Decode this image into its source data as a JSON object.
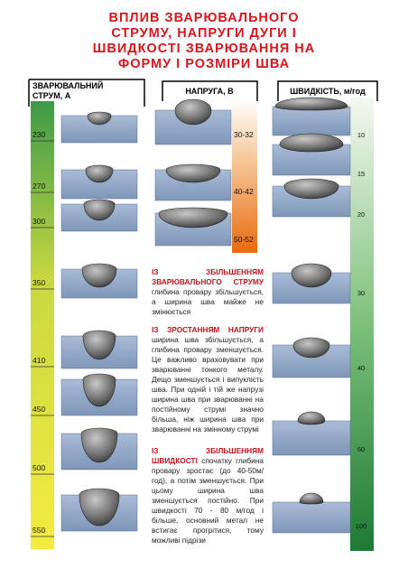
{
  "header": {
    "title_lines": [
      "ВПЛИВ ЗВАРЮВАЛЬНОГО",
      "СТРУМУ, НАПРУГИ ДУГИ І",
      "ШВИДКОСТІ ЗВАРЮВАННЯ НА",
      "ФОРМУ І РОЗМІРИ ШВА"
    ]
  },
  "columns": [
    {
      "header_lines": [
        "ЗВАРЮВАЛЬНИЙ",
        "СТРУМ, А"
      ],
      "scale": [
        "230",
        "270",
        "300",
        "350",
        "410",
        "450",
        "500",
        "550"
      ]
    },
    {
      "header_lines": [
        "НАПРУГА, В"
      ],
      "scale": [
        "30-32",
        "40-42",
        "50-52"
      ]
    },
    {
      "header_lines": [
        "ШВИДКІСТЬ, м/год"
      ],
      "scale": [
        "10",
        "15",
        "20",
        "30",
        "40",
        "60",
        "100"
      ]
    }
  ],
  "notes": [
    {
      "lead": "ІЗ ЗБІЛЬШЕННЯМ ЗВАРЮВАЛЬНОГО СТРУМУ",
      "body": "глибина провару збільшується, а ширина шва майже не змінюється"
    },
    {
      "lead": "ІЗ ЗРОСТАННЯМ НАПРУГИ",
      "body": "ширина шва збільшується, а глибина провару зменшується. Це важливо враховувати при зварюванні тонкого металу. Дещо зменшується і випуклість шва. При одній і тій же напрузі ширина шва при зварюванні на постійному струмі значно більша, ніж ширина шва при зварюванні на змінному струмі"
    },
    {
      "lead": "ІЗ ЗБІЛЬШЕННЯМ ШВИДКОСТІ",
      "body": "спочатку глибина провару зростає (до 40-50м/год), а потім зменшується. При цьому ширина шва зменшується постійно. При швидкості 70 - 80 м/год і більше, основний метал не встигає прогрітися, тому можливі підрізи"
    }
  ]
}
